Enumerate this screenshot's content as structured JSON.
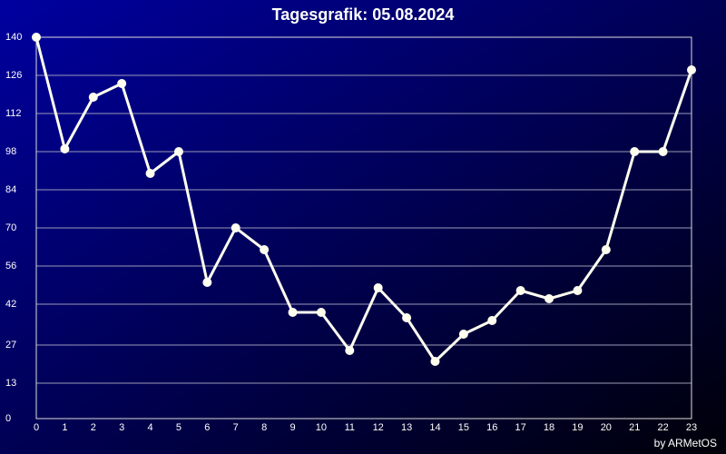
{
  "chart_data": {
    "type": "line",
    "title": "Tagesgrafik: 05.08.2024",
    "credit": "by ARMetOS",
    "x": [
      0,
      1,
      2,
      3,
      4,
      5,
      6,
      7,
      8,
      9,
      10,
      11,
      12,
      13,
      14,
      15,
      16,
      17,
      18,
      19,
      20,
      21,
      22,
      23
    ],
    "series": [
      {
        "color": "#fffff0",
        "values": [
          140,
          99,
          118,
          123,
          90,
          98,
          50,
          70,
          62,
          39,
          39,
          25,
          48,
          37,
          21,
          31,
          36,
          47,
          44,
          47,
          62,
          98,
          98,
          128
        ]
      }
    ],
    "xlim": [
      0,
      23
    ],
    "xticks": [
      0,
      1,
      2,
      3,
      4,
      5,
      6,
      7,
      8,
      9,
      10,
      11,
      12,
      13,
      14,
      15,
      16,
      17,
      18,
      19,
      20,
      21,
      22,
      23
    ],
    "ylim": [
      0,
      140
    ],
    "yticks": [
      0,
      13,
      27,
      42,
      56,
      70,
      84,
      98,
      112,
      126,
      140
    ],
    "grid": true
  }
}
